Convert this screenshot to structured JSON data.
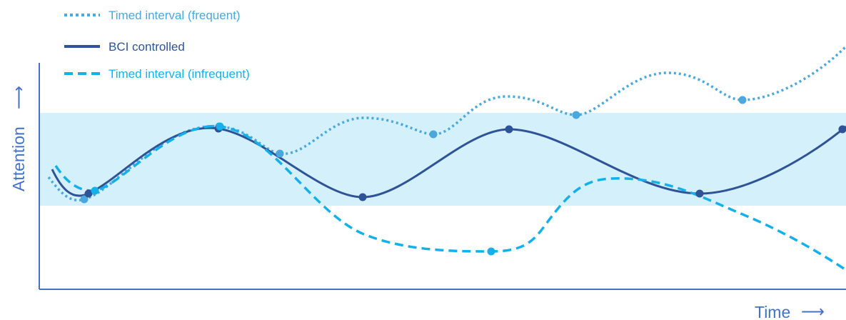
{
  "legend": [
    {
      "label": "Timed interval (frequent)",
      "color": "#4aa8de",
      "style": "dotted"
    },
    {
      "label": "BCI controlled",
      "color": "#2e5396",
      "style": "solid"
    },
    {
      "label": "Timed interval (infrequent)",
      "color": "#14b0ea",
      "style": "dashed"
    }
  ],
  "axes": {
    "xlabel": "Time",
    "xarrow": "⟶",
    "ylabel": "Attention",
    "yarrow": "⟶",
    "axis_color": "#4472c4"
  },
  "band": {
    "color": "#d4f0fb"
  },
  "series": [
    {
      "name": "Timed interval (frequent)",
      "color": "#4aa8de",
      "style": "dotted",
      "markers": [
        [
          118,
          279
        ],
        [
          307,
          177
        ],
        [
          392,
          215
        ],
        [
          607,
          188
        ],
        [
          807,
          161
        ],
        [
          1040,
          140
        ]
      ]
    },
    {
      "name": "BCI controlled",
      "color": "#2e5396",
      "style": "solid",
      "markers": [
        [
          124,
          271
        ],
        [
          306,
          180
        ],
        [
          508,
          276
        ],
        [
          713,
          181
        ],
        [
          980,
          271
        ],
        [
          1180,
          181
        ]
      ]
    },
    {
      "name": "Timed interval (infrequent)",
      "color": "#14b0ea",
      "style": "dashed",
      "markers": [
        [
          133,
          267
        ],
        [
          308,
          177
        ],
        [
          688,
          352
        ]
      ]
    }
  ]
}
